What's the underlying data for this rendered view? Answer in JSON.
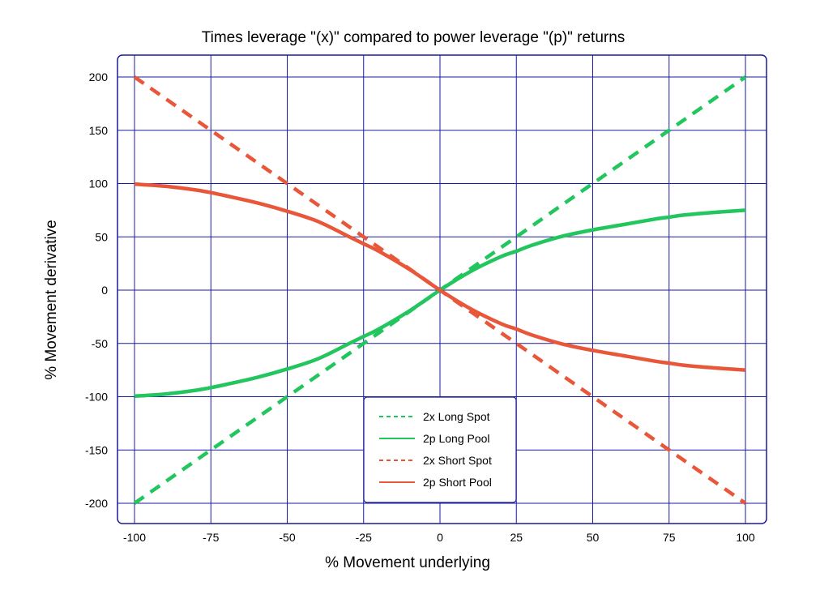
{
  "chart_data": {
    "type": "line",
    "title": "Times leverage \"(x)\" compared to power leverage \"(p)\" returns",
    "xlabel": "% Movement underlying",
    "ylabel": "% Movement derivative",
    "xlim": [
      -100,
      100
    ],
    "ylim": [
      -200,
      200
    ],
    "x_ticks": [
      "-100",
      "-75",
      "-50",
      "-25",
      "0",
      "25",
      "50",
      "75",
      "100"
    ],
    "y_ticks": [
      "200",
      "150",
      "100",
      "50",
      "0",
      "-50",
      "-100",
      "-150",
      "-200"
    ],
    "grid": true,
    "legend_position": "bottom-center",
    "x": [
      -100,
      -90,
      -80,
      -75,
      -70,
      -60,
      -50,
      -40,
      -30,
      -25,
      -20,
      -10,
      0,
      10,
      20,
      25,
      30,
      40,
      50,
      60,
      70,
      75,
      80,
      90,
      100
    ],
    "series": [
      {
        "name": "2x Long Spot",
        "style": "dashed",
        "color": "#22c55e",
        "values": [
          -200,
          -180,
          -160,
          -150,
          -140,
          -120,
          -100,
          -80,
          -60,
          -50,
          -40,
          -20,
          0,
          20,
          40,
          50,
          60,
          80,
          100,
          120,
          140,
          150,
          160,
          180,
          200
        ]
      },
      {
        "name": "2p Long Pool",
        "style": "solid",
        "color": "#22c55e",
        "values": [
          -99.5,
          -97.5,
          -94,
          -91.5,
          -88.5,
          -82,
          -74,
          -64.5,
          -50.5,
          -43.5,
          -36.5,
          -19.5,
          0,
          17.5,
          31.5,
          36.5,
          42,
          50.5,
          56.5,
          61.5,
          66.5,
          68.5,
          70.5,
          73,
          75
        ]
      },
      {
        "name": "2x Short Spot",
        "style": "dashed",
        "color": "#e8573a",
        "values": [
          200,
          180,
          160,
          150,
          140,
          120,
          100,
          80,
          60,
          50,
          40,
          20,
          0,
          -20,
          -40,
          -50,
          -60,
          -80,
          -100,
          -120,
          -140,
          -150,
          -160,
          -180,
          -200
        ]
      },
      {
        "name": "2p Short Pool",
        "style": "solid",
        "color": "#e8573a",
        "values": [
          99.5,
          97.5,
          94,
          91.5,
          88.5,
          82,
          74,
          64.5,
          50.5,
          43.5,
          36.5,
          19.5,
          0,
          -17.5,
          -31.5,
          -36.5,
          -42,
          -50.5,
          -56.5,
          -61.5,
          -66.5,
          -68.5,
          -70.5,
          -73,
          -75
        ]
      }
    ],
    "colors": {
      "frame": "#1a1a9c",
      "grid": "#1a1a9c",
      "long": "#22c55e",
      "short": "#e8573a"
    }
  }
}
